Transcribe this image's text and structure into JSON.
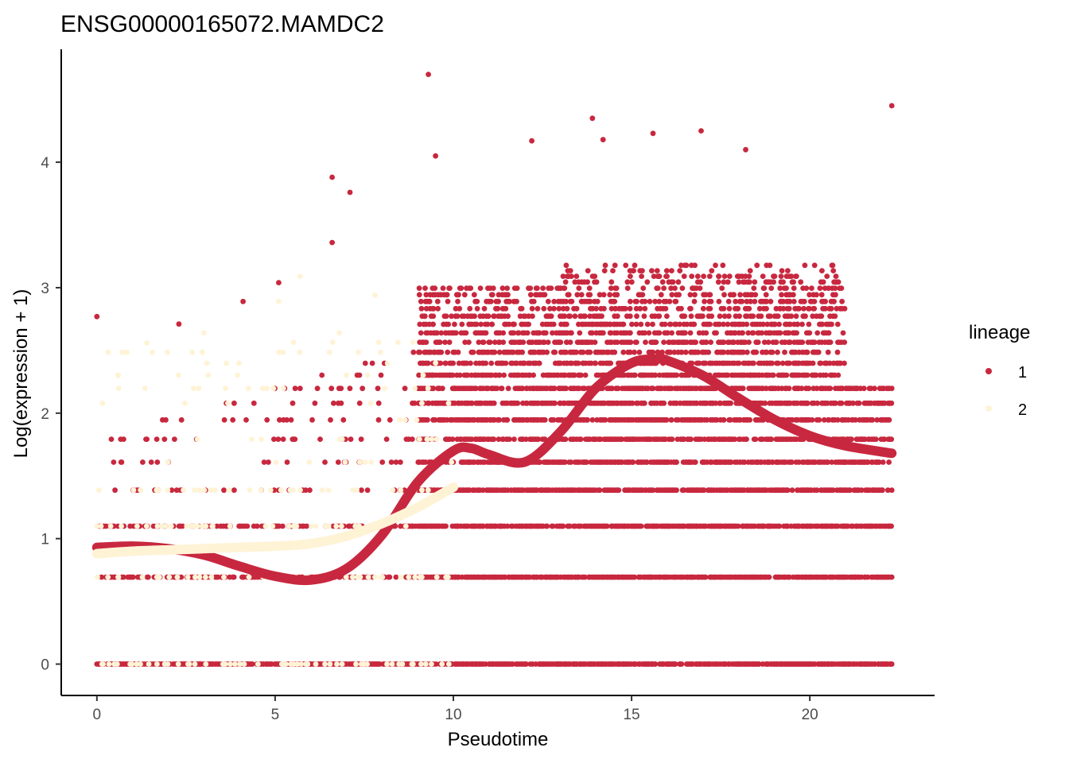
{
  "chart_data": {
    "type": "scatter",
    "title": "ENSG00000165072.MAMDC2",
    "xlabel": "Pseudotime",
    "ylabel": "Log(expression + 1)",
    "xlim": [
      -1,
      23.5
    ],
    "ylim": [
      -0.25,
      4.9
    ],
    "xticks": [
      0,
      5,
      10,
      15,
      20
    ],
    "yticks": [
      0,
      1,
      2,
      3,
      4
    ],
    "grid": false,
    "legend": {
      "title": "lineage",
      "position": "right",
      "entries": [
        {
          "label": "1",
          "color": "#C8283F"
        },
        {
          "label": "2",
          "color": "#FFF3D6"
        }
      ]
    },
    "expression_levels": [
      0,
      0.693,
      1.099,
      1.386,
      1.609,
      1.792,
      1.946,
      2.079,
      2.197,
      2.303,
      2.398,
      2.485,
      2.565,
      2.639,
      2.708,
      2.773,
      2.833,
      2.89,
      2.944,
      2.996,
      3.045,
      3.091,
      3.135,
      3.178
    ],
    "series": [
      {
        "name": "1",
        "color": "#C8283F",
        "x_range": [
          0,
          22.3
        ],
        "points_sample": [
          {
            "x": 0,
            "y": 2.77
          },
          {
            "x": 9.3,
            "y": 4.7
          },
          {
            "x": 9.5,
            "y": 4.05
          },
          {
            "x": 22.3,
            "y": 4.45
          },
          {
            "x": 13.9,
            "y": 4.35
          },
          {
            "x": 15.6,
            "y": 4.23
          },
          {
            "x": 16.95,
            "y": 4.25
          },
          {
            "x": 6.6,
            "y": 3.88
          },
          {
            "x": 7.1,
            "y": 3.76
          },
          {
            "x": 6.6,
            "y": 3.36
          },
          {
            "x": 5.1,
            "y": 3.04
          },
          {
            "x": 4.1,
            "y": 2.89
          },
          {
            "x": 2.3,
            "y": 2.71
          },
          {
            "x": 18.2,
            "y": 4.1
          },
          {
            "x": 12.2,
            "y": 4.17
          },
          {
            "x": 14.2,
            "y": 4.18
          }
        ],
        "smooth": {
          "x": [
            0,
            1,
            2,
            3,
            4,
            5,
            6,
            7,
            8,
            9,
            10,
            10.5,
            11,
            12,
            13,
            14,
            15,
            15.7,
            16,
            17,
            18,
            19,
            20,
            21,
            22.3
          ],
          "y": [
            0.93,
            0.94,
            0.92,
            0.87,
            0.78,
            0.7,
            0.67,
            0.76,
            1.03,
            1.45,
            1.7,
            1.72,
            1.67,
            1.61,
            1.85,
            2.2,
            2.4,
            2.43,
            2.42,
            2.3,
            2.12,
            1.95,
            1.82,
            1.74,
            1.68
          ]
        }
      },
      {
        "name": "2",
        "color": "#FFF3D6",
        "x_range": [
          0,
          10
        ],
        "points_sample": [
          {
            "x": 5.7,
            "y": 3.09
          },
          {
            "x": 5.1,
            "y": 2.89
          },
          {
            "x": 7.8,
            "y": 2.94
          },
          {
            "x": 3.0,
            "y": 2.64
          },
          {
            "x": 1.4,
            "y": 2.56
          },
          {
            "x": 0.6,
            "y": 2.3
          },
          {
            "x": 6.8,
            "y": 2.64
          },
          {
            "x": 9.5,
            "y": 2.4
          }
        ],
        "smooth": {
          "x": [
            0,
            1,
            2,
            3,
            4,
            5,
            6,
            7,
            8,
            9,
            10
          ],
          "y": [
            0.88,
            0.9,
            0.91,
            0.92,
            0.93,
            0.94,
            0.96,
            1.02,
            1.12,
            1.25,
            1.41
          ]
        }
      }
    ]
  }
}
